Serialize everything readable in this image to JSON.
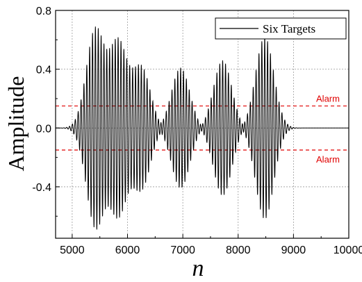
{
  "chart_data": {
    "type": "line",
    "xlabel": "n",
    "ylabel": "Amplitude",
    "xlim": [
      4700,
      10000
    ],
    "ylim": [
      -0.75,
      0.8
    ],
    "grid": true,
    "legend_position": "top-right",
    "x_ticks": [
      5000,
      6000,
      7000,
      8000,
      9000,
      10000
    ],
    "x_tick_labels": [
      "5000",
      "6000",
      "7000",
      "8000",
      "9000",
      "10000"
    ],
    "y_ticks": [
      0.8,
      0.4,
      0.0,
      -0.4
    ],
    "y_tick_labels": [
      "0.8",
      "0.4",
      "0.0",
      "-0.4"
    ],
    "series": [
      {
        "name": "Six Targets",
        "color": "#000000",
        "bursts": [
          {
            "center": 5420,
            "amplitude": 0.67
          },
          {
            "center": 5830,
            "amplitude": 0.58
          },
          {
            "center": 6250,
            "amplitude": 0.41
          },
          {
            "center": 6960,
            "amplitude": 0.41
          },
          {
            "center": 7720,
            "amplitude": 0.46
          },
          {
            "center": 8480,
            "amplitude": 0.62
          }
        ]
      }
    ],
    "thresholds": [
      {
        "label": "Alarm",
        "value": 0.15,
        "color": "#e00000",
        "style": "dashed"
      },
      {
        "label": "Alarm",
        "value": -0.15,
        "color": "#e00000",
        "style": "dashed"
      }
    ]
  }
}
